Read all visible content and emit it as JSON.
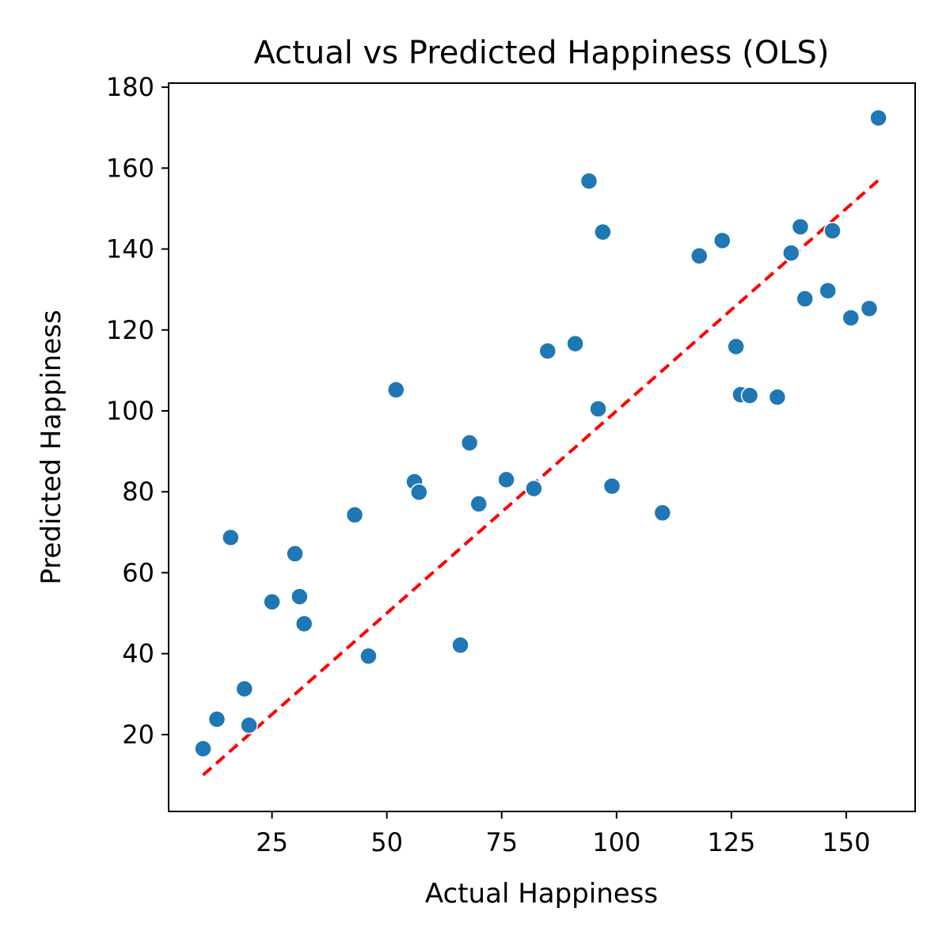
{
  "chart_data": {
    "type": "scatter",
    "title": "Actual vs Predicted Happiness (OLS)",
    "xlabel": "Actual Happiness",
    "ylabel": "Predicted Happiness",
    "xlim": [
      2.5,
      165
    ],
    "ylim": [
      1,
      181
    ],
    "xticks": [
      25,
      50,
      75,
      100,
      125,
      150
    ],
    "yticks": [
      20,
      40,
      60,
      80,
      100,
      120,
      140,
      160,
      180
    ],
    "grid": false,
    "marker_color": "#1f77b4",
    "line_color": "#ff0000",
    "reference_line": {
      "style": "dashed",
      "x": [
        10,
        157
      ],
      "y": [
        10,
        157
      ]
    },
    "points": [
      {
        "x": 10,
        "y": 16.5
      },
      {
        "x": 13,
        "y": 23.8
      },
      {
        "x": 16,
        "y": 68.7
      },
      {
        "x": 19,
        "y": 31.3
      },
      {
        "x": 20,
        "y": 22.3
      },
      {
        "x": 25,
        "y": 52.8
      },
      {
        "x": 30,
        "y": 64.7
      },
      {
        "x": 31,
        "y": 54.1
      },
      {
        "x": 32,
        "y": 47.4
      },
      {
        "x": 43,
        "y": 74.3
      },
      {
        "x": 46,
        "y": 39.4
      },
      {
        "x": 52,
        "y": 105.2
      },
      {
        "x": 56,
        "y": 82.5
      },
      {
        "x": 57,
        "y": 79.9
      },
      {
        "x": 66,
        "y": 42.1
      },
      {
        "x": 68,
        "y": 92.1
      },
      {
        "x": 70,
        "y": 77.0
      },
      {
        "x": 76,
        "y": 83.0
      },
      {
        "x": 82,
        "y": 80.8
      },
      {
        "x": 85,
        "y": 114.8
      },
      {
        "x": 91,
        "y": 116.6
      },
      {
        "x": 94,
        "y": 156.8
      },
      {
        "x": 96,
        "y": 100.5
      },
      {
        "x": 97,
        "y": 144.2
      },
      {
        "x": 99,
        "y": 81.4
      },
      {
        "x": 110,
        "y": 74.8
      },
      {
        "x": 118,
        "y": 138.3
      },
      {
        "x": 123,
        "y": 142.1
      },
      {
        "x": 126,
        "y": 115.9
      },
      {
        "x": 127,
        "y": 104.0
      },
      {
        "x": 129,
        "y": 103.8
      },
      {
        "x": 135,
        "y": 103.4
      },
      {
        "x": 138,
        "y": 139.0
      },
      {
        "x": 140,
        "y": 145.5
      },
      {
        "x": 141,
        "y": 127.7
      },
      {
        "x": 146,
        "y": 129.7
      },
      {
        "x": 147,
        "y": 144.5
      },
      {
        "x": 151,
        "y": 123.0
      },
      {
        "x": 155,
        "y": 125.3
      },
      {
        "x": 157,
        "y": 172.4
      }
    ]
  }
}
